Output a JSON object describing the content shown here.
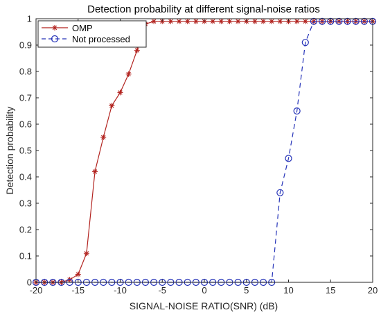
{
  "chart_data": {
    "type": "line",
    "title": "Detection probability at different signal-noise ratios",
    "xlabel": "SIGNAL-NOISE RATIO(SNR) (dB)",
    "ylabel": "Detection probability",
    "xlim": [
      -20,
      20
    ],
    "ylim": [
      0,
      1
    ],
    "xticks": [
      -20,
      -15,
      -10,
      -5,
      0,
      5,
      10,
      15,
      20
    ],
    "yticks": [
      0,
      0.1,
      0.2,
      0.3,
      0.4,
      0.5,
      0.6,
      0.7,
      0.8,
      0.9,
      1
    ],
    "grid": false,
    "legend_position": "top-left",
    "series": [
      {
        "name": "OMP",
        "color": "#b2231f",
        "line_style": "solid",
        "marker": "asterisk",
        "x": [
          -20,
          -19,
          -18,
          -17,
          -16,
          -15,
          -14,
          -13,
          -12,
          -11,
          -10,
          -9,
          -8,
          -7,
          -6,
          -5,
          -4,
          -3,
          -2,
          -1,
          0,
          1,
          2,
          3,
          4,
          5,
          6,
          7,
          8,
          9,
          10,
          11,
          12,
          13,
          14,
          15,
          16,
          17,
          18,
          19,
          20
        ],
        "y": [
          0,
          0,
          0,
          0,
          0.01,
          0.03,
          0.11,
          0.42,
          0.55,
          0.67,
          0.72,
          0.79,
          0.88,
          0.98,
          0.99,
          0.99,
          0.99,
          0.99,
          0.99,
          0.99,
          0.99,
          0.99,
          0.99,
          0.99,
          0.99,
          0.99,
          0.99,
          0.99,
          0.99,
          0.99,
          0.99,
          0.99,
          0.99,
          0.99,
          0.99,
          0.99,
          0.99,
          0.99,
          0.99,
          0.99,
          0.99
        ]
      },
      {
        "name": "Not processed",
        "color": "#2432b8",
        "line_style": "dashed",
        "marker": "circle",
        "x": [
          -20,
          -19,
          -18,
          -17,
          -16,
          -15,
          -14,
          -13,
          -12,
          -11,
          -10,
          -9,
          -8,
          -7,
          -6,
          -5,
          -4,
          -3,
          -2,
          -1,
          0,
          1,
          2,
          3,
          4,
          5,
          6,
          7,
          8,
          9,
          10,
          11,
          12,
          13,
          14,
          15,
          16,
          17,
          18,
          19,
          20
        ],
        "y": [
          0,
          0,
          0,
          0,
          0,
          0,
          0,
          0,
          0,
          0,
          0,
          0,
          0,
          0,
          0,
          0,
          0,
          0,
          0,
          0,
          0,
          0,
          0,
          0,
          0,
          0,
          0,
          0,
          0,
          0.34,
          0.47,
          0.65,
          0.91,
          0.99,
          0.99,
          0.99,
          0.99,
          0.99,
          0.99,
          0.99,
          0.99
        ]
      }
    ]
  }
}
